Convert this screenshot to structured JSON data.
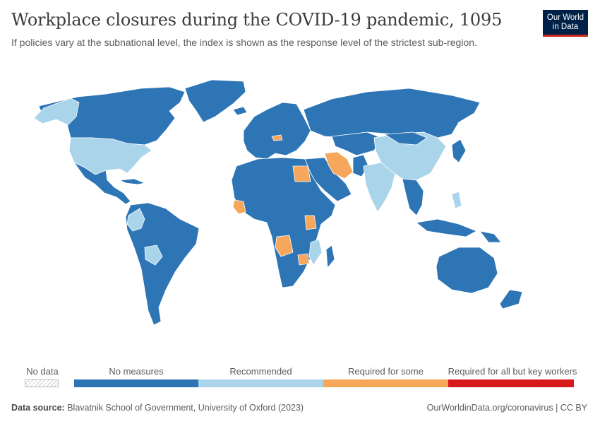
{
  "header": {
    "title": "Workplace closures during the COVID-19 pandemic, 1095",
    "subtitle": "If policies vary at the subnational level, the index is shown as the response level of the strictest sub-region."
  },
  "logo": {
    "line1": "Our World",
    "line2": "in Data"
  },
  "colors": {
    "no_measures": "#2e75b6",
    "recommended": "#a9d4ea",
    "required_some": "#f7a75b",
    "required_all": "#d7191c",
    "ocean": "#ffffff",
    "border": "#ffffff"
  },
  "legend": {
    "no_data_label": "No data",
    "items": [
      {
        "label": "No measures",
        "color": "#2e75b6"
      },
      {
        "label": "Recommended",
        "color": "#a9d4ea"
      },
      {
        "label": "Required for some",
        "color": "#f7a75b"
      },
      {
        "label": "Required for all but key workers",
        "color": "#d7191c"
      }
    ]
  },
  "map_regions": {
    "no_measures": [
      "North America",
      "Russia",
      "Europe",
      "Africa",
      "South America",
      "Australia",
      "Greenland",
      "Middle East",
      "Southeast Asia"
    ],
    "recommended": [
      "United States",
      "China",
      "India",
      "Alaska",
      "Bolivia",
      "Colombia",
      "Mozambique"
    ],
    "required_some": [
      "Iran",
      "Egypt",
      "Angola",
      "Tanzania",
      "Zimbabwe",
      "Liberia",
      "Austria"
    ]
  },
  "footer": {
    "source_label": "Data source:",
    "source_text": "Blavatnik School of Government, University of Oxford (2023)",
    "right_text": "OurWorldinData.org/coronavirus | CC BY"
  }
}
